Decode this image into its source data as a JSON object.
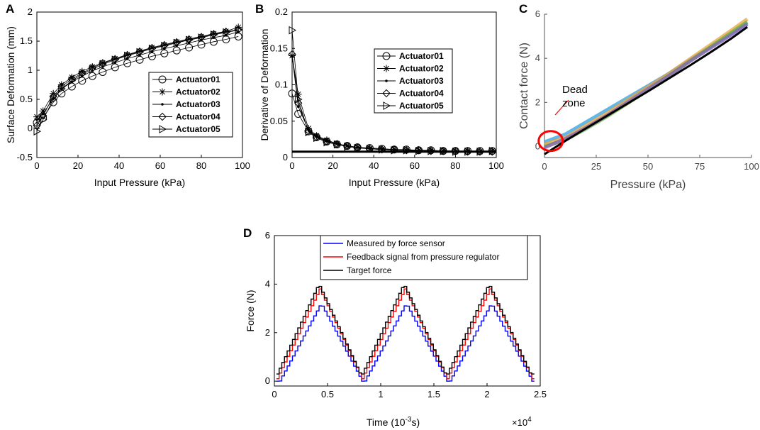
{
  "figure_labels": [
    "A",
    "B",
    "C",
    "D"
  ],
  "chart_data": [
    {
      "panel": "A",
      "type": "line",
      "xlabel": "Input Pressure (kPa)",
      "ylabel": "Surface Deformation (mm)",
      "xlim": [
        0,
        100
      ],
      "ylim": [
        -0.5,
        2
      ],
      "xticks": [
        "0",
        "20",
        "40",
        "60",
        "80",
        "100"
      ],
      "yticks": [
        "-0.5",
        "0",
        "0.5",
        "1",
        "1.5",
        "2"
      ],
      "legend": "right",
      "x": [
        0,
        3,
        8,
        12,
        17,
        22,
        27,
        32,
        38,
        44,
        50,
        56,
        62,
        68,
        74,
        80,
        86,
        92,
        98
      ],
      "series": [
        {
          "name": "Actuator01",
          "marker": "circle",
          "values": [
            0.1,
            0.18,
            0.45,
            0.6,
            0.72,
            0.82,
            0.9,
            0.97,
            1.05,
            1.12,
            1.18,
            1.24,
            1.29,
            1.34,
            1.39,
            1.44,
            1.49,
            1.53,
            1.58
          ]
        },
        {
          "name": "Actuator02",
          "marker": "star",
          "values": [
            0.2,
            0.3,
            0.6,
            0.75,
            0.88,
            0.98,
            1.06,
            1.13,
            1.2,
            1.27,
            1.33,
            1.39,
            1.44,
            1.49,
            1.54,
            1.58,
            1.63,
            1.67,
            1.74
          ]
        },
        {
          "name": "Actuator03",
          "marker": "dot",
          "values": [
            0.15,
            0.25,
            0.52,
            0.68,
            0.8,
            0.9,
            0.99,
            1.06,
            1.13,
            1.2,
            1.26,
            1.32,
            1.37,
            1.42,
            1.47,
            1.52,
            1.56,
            1.6,
            1.66
          ]
        },
        {
          "name": "Actuator04",
          "marker": "diamond",
          "values": [
            0.05,
            0.22,
            0.55,
            0.72,
            0.85,
            0.95,
            1.04,
            1.12,
            1.19,
            1.26,
            1.32,
            1.38,
            1.43,
            1.48,
            1.53,
            1.57,
            1.62,
            1.66,
            1.7
          ]
        },
        {
          "name": "Actuator05",
          "marker": "triangle-right",
          "values": [
            -0.05,
            0.15,
            0.5,
            0.68,
            0.82,
            0.93,
            1.02,
            1.1,
            1.18,
            1.25,
            1.31,
            1.37,
            1.42,
            1.47,
            1.52,
            1.56,
            1.61,
            1.65,
            1.69
          ]
        }
      ]
    },
    {
      "panel": "B",
      "type": "line",
      "xlabel": "Input Pressure (kPa)",
      "ylabel": "Derivative of Deformation",
      "xlim": [
        0,
        100
      ],
      "ylim": [
        0,
        0.2
      ],
      "xticks": [
        "0",
        "20",
        "40",
        "60",
        "80",
        "100"
      ],
      "yticks": [
        "0",
        "0.05",
        "0.1",
        "0.15",
        "0.2"
      ],
      "legend": "right",
      "threshold": 0.008,
      "x": [
        0,
        3,
        8,
        12,
        17,
        22,
        27,
        32,
        38,
        44,
        50,
        56,
        62,
        68,
        74,
        80,
        86,
        92,
        98
      ],
      "series": [
        {
          "name": "Actuator01",
          "marker": "circle",
          "values": [
            0.088,
            0.06,
            0.036,
            0.028,
            0.022,
            0.018,
            0.016,
            0.014,
            0.013,
            0.012,
            0.011,
            0.011,
            0.01,
            0.01,
            0.009,
            0.009,
            0.009,
            0.009,
            0.009
          ]
        },
        {
          "name": "Actuator02",
          "marker": "star",
          "values": [
            0.14,
            0.087,
            0.04,
            0.03,
            0.024,
            0.019,
            0.016,
            0.014,
            0.012,
            0.011,
            0.011,
            0.01,
            0.01,
            0.01,
            0.009,
            0.009,
            0.009,
            0.008,
            0.009
          ]
        },
        {
          "name": "Actuator03",
          "marker": "dot",
          "values": [
            0.14,
            0.07,
            0.038,
            0.029,
            0.023,
            0.019,
            0.016,
            0.014,
            0.013,
            0.012,
            0.011,
            0.01,
            0.01,
            0.009,
            0.009,
            0.009,
            0.008,
            0.008,
            0.008
          ]
        },
        {
          "name": "Actuator04",
          "marker": "diamond",
          "values": [
            0.142,
            0.075,
            0.037,
            0.028,
            0.022,
            0.018,
            0.016,
            0.014,
            0.012,
            0.011,
            0.011,
            0.01,
            0.01,
            0.009,
            0.009,
            0.009,
            0.008,
            0.008,
            0.008
          ]
        },
        {
          "name": "Actuator05",
          "marker": "triangle-right",
          "values": [
            0.175,
            0.08,
            0.035,
            0.027,
            0.021,
            0.018,
            0.015,
            0.013,
            0.012,
            0.011,
            0.01,
            0.01,
            0.009,
            0.009,
            0.009,
            0.008,
            0.008,
            0.008,
            0.009
          ]
        }
      ]
    },
    {
      "panel": "C",
      "type": "line",
      "xlabel": "Pressure (kPa)",
      "ylabel": "Contact force (N)",
      "xlim": [
        0,
        100
      ],
      "ylim": [
        -0.5,
        6
      ],
      "xticks": [
        "0",
        "25",
        "50",
        "75",
        "100"
      ],
      "yticks": [
        "0",
        "2",
        "4",
        "6"
      ],
      "annotation": "Dead zone",
      "dead_zone_center": [
        3,
        0.25
      ],
      "x": [
        0,
        10,
        20,
        30,
        40,
        50,
        60,
        70,
        80,
        90,
        98
      ],
      "series": [
        {
          "name": "trial-blue",
          "color": "#2b9fe0",
          "values": [
            0.2,
            0.55,
            1.1,
            1.65,
            2.2,
            2.75,
            3.3,
            3.9,
            4.5,
            5.1,
            5.6
          ]
        },
        {
          "name": "trial-orange",
          "color": "#e8a33a",
          "values": [
            0.1,
            0.4,
            0.95,
            1.5,
            2.1,
            2.7,
            3.3,
            3.95,
            4.6,
            5.25,
            5.78
          ]
        },
        {
          "name": "trial-green",
          "color": "#66b342",
          "values": [
            0.0,
            0.3,
            0.8,
            1.35,
            1.95,
            2.55,
            3.2,
            3.85,
            4.5,
            5.15,
            5.65
          ]
        },
        {
          "name": "trial-purple",
          "color": "#8a63b8",
          "values": [
            -0.05,
            0.35,
            0.85,
            1.4,
            2.0,
            2.6,
            3.2,
            3.85,
            4.45,
            5.05,
            5.55
          ]
        },
        {
          "name": "fit",
          "color": "#000000",
          "values": [
            -0.35,
            0.25,
            0.82,
            1.38,
            1.94,
            2.5,
            3.08,
            3.66,
            4.26,
            4.88,
            5.42
          ]
        }
      ]
    },
    {
      "panel": "D",
      "type": "line",
      "xlabel": "Time (10",
      "xlabel_sup": "-3",
      "xlabel_tail": "s)",
      "x_multiplier": "×10",
      "x_multiplier_exp": "4",
      "ylabel": "Force (N)",
      "xlim": [
        0,
        2.5
      ],
      "ylim": [
        -0.2,
        6
      ],
      "xticks": [
        "0",
        "0.5",
        "1",
        "1.5",
        "2",
        "2.5"
      ],
      "yticks": [
        "0",
        "2",
        "4",
        "6"
      ],
      "legend": "top",
      "period": 0.8,
      "cycles": 3,
      "series": [
        {
          "name": "Measured by force sensor",
          "color": "#0000ff",
          "peak": 3.2,
          "min": -0.1
        },
        {
          "name": "Feedback signal from pressure regulator",
          "color": "#ff0000",
          "peak": 3.8,
          "min": 0.1
        },
        {
          "name": "Target force",
          "color": "#000000",
          "peak": 4.0,
          "min": 0.2
        }
      ]
    }
  ]
}
